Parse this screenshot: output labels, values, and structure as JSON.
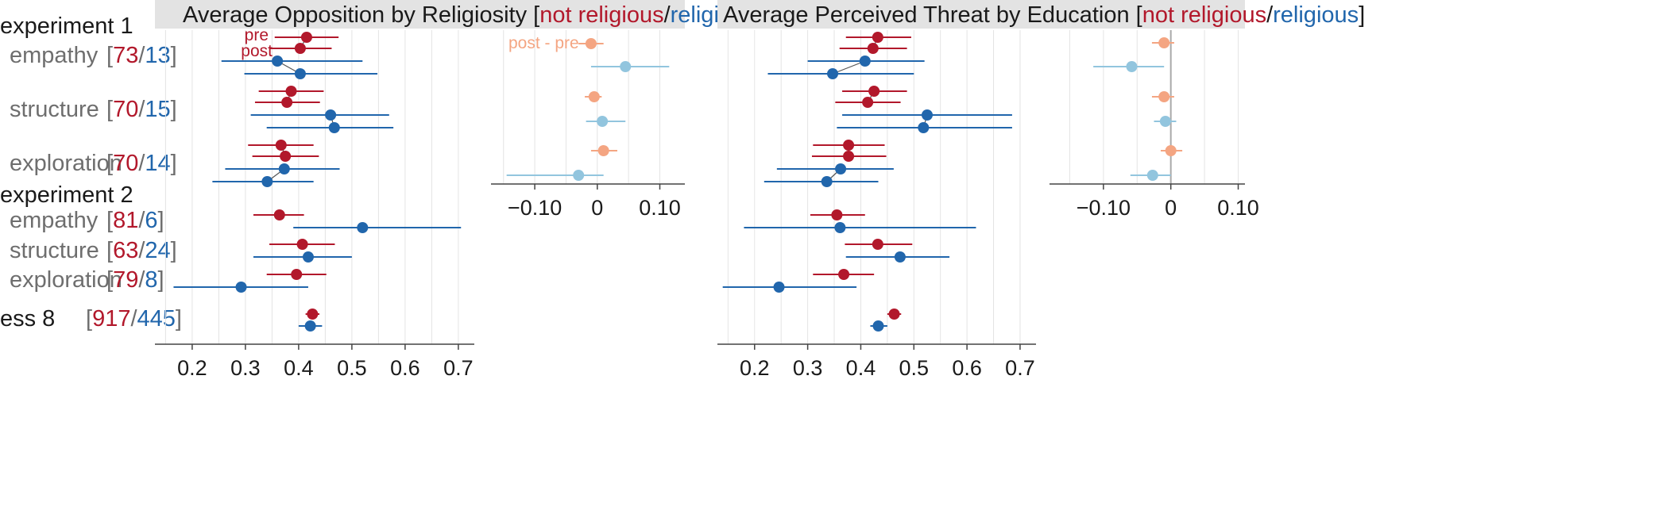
{
  "colors": {
    "not_religious": "#b2182b",
    "religious": "#2166ac",
    "diff_not_religious": "#f4a582",
    "diff_religious": "#92c5de",
    "grid": "#e4e4e4",
    "title_bg": "#e3e3e3",
    "axis": "#444444",
    "zero_line": "#aaaaaa",
    "row_label": "#6e6e6e"
  },
  "labels": {
    "pre": "pre",
    "post": "post",
    "post_minus_pre": "post - pre"
  },
  "rows": [
    {
      "kind": "group",
      "label": "experiment 1"
    },
    {
      "kind": "row",
      "label": "empathy",
      "counts": {
        "not_religious": "73",
        "religious": "13"
      },
      "paired": true
    },
    {
      "kind": "row",
      "label": "structure",
      "counts": {
        "not_religious": "70",
        "religious": "15"
      },
      "paired": true
    },
    {
      "kind": "row",
      "label": "exploration",
      "counts": {
        "not_religious": "70",
        "religious": "14"
      },
      "paired": true
    },
    {
      "kind": "group",
      "label": "experiment 2"
    },
    {
      "kind": "row",
      "label": "empathy",
      "counts": {
        "not_religious": "81",
        "religious": "6"
      },
      "paired": false
    },
    {
      "kind": "row",
      "label": "structure",
      "counts": {
        "not_religious": "63",
        "religious": "24"
      },
      "paired": false
    },
    {
      "kind": "row",
      "label": "exploration",
      "counts": {
        "not_religious": "79",
        "religious": "8"
      },
      "paired": false
    },
    {
      "kind": "group",
      "label": "ess 8",
      "counts": {
        "not_religious": "917",
        "religious": "445"
      },
      "paired": false
    }
  ],
  "chart_data": [
    {
      "type": "scatter",
      "title": {
        "prefix": "Average Opposition by Religiosity [",
        "not_religious": "not religious",
        "sep": "/",
        "religious": "religious",
        "suffix": "]"
      },
      "xlim": [
        0.13,
        0.73
      ],
      "xticks": [
        0.2,
        0.3,
        0.4,
        0.5,
        0.6,
        0.7
      ],
      "xticklabels": [
        "0.2",
        "0.3",
        "0.4",
        "0.5",
        "0.6",
        "0.7"
      ],
      "grid": true,
      "series": [
        {
          "name": "not religious",
          "points": [
            {
              "row": "experiment 1 empathy",
              "wave": "pre",
              "mean": 0.415,
              "ci": [
                0.355,
                0.475
              ]
            },
            {
              "row": "experiment 1 empathy",
              "wave": "post",
              "mean": 0.403,
              "ci": [
                0.345,
                0.462
              ]
            },
            {
              "row": "experiment 1 structure",
              "wave": "pre",
              "mean": 0.386,
              "ci": [
                0.325,
                0.447
              ]
            },
            {
              "row": "experiment 1 structure",
              "wave": "post",
              "mean": 0.378,
              "ci": [
                0.318,
                0.44
              ]
            },
            {
              "row": "experiment 1 exploration",
              "wave": "pre",
              "mean": 0.367,
              "ci": [
                0.305,
                0.428
              ]
            },
            {
              "row": "experiment 1 exploration",
              "wave": "post",
              "mean": 0.375,
              "ci": [
                0.313,
                0.438
              ]
            },
            {
              "row": "experiment 2 empathy",
              "mean": 0.364,
              "ci": [
                0.315,
                0.41
              ]
            },
            {
              "row": "experiment 2 structure",
              "mean": 0.407,
              "ci": [
                0.345,
                0.468
              ]
            },
            {
              "row": "experiment 2 exploration",
              "mean": 0.396,
              "ci": [
                0.34,
                0.452
              ]
            },
            {
              "row": "ess 8",
              "mean": 0.426,
              "ci": [
                0.413,
                0.439
              ]
            }
          ]
        },
        {
          "name": "religious",
          "points": [
            {
              "row": "experiment 1 empathy",
              "wave": "pre",
              "mean": 0.36,
              "ci": [
                0.255,
                0.52
              ]
            },
            {
              "row": "experiment 1 empathy",
              "wave": "post",
              "mean": 0.403,
              "ci": [
                0.298,
                0.548
              ]
            },
            {
              "row": "experiment 1 structure",
              "wave": "pre",
              "mean": 0.46,
              "ci": [
                0.31,
                0.57
              ]
            },
            {
              "row": "experiment 1 structure",
              "wave": "post",
              "mean": 0.467,
              "ci": [
                0.34,
                0.578
              ]
            },
            {
              "row": "experiment 1 exploration",
              "wave": "pre",
              "mean": 0.373,
              "ci": [
                0.262,
                0.477
              ]
            },
            {
              "row": "experiment 1 exploration",
              "wave": "post",
              "mean": 0.341,
              "ci": [
                0.238,
                0.428
              ]
            },
            {
              "row": "experiment 2 empathy",
              "mean": 0.52,
              "ci": [
                0.39,
                0.705
              ]
            },
            {
              "row": "experiment 2 structure",
              "mean": 0.418,
              "ci": [
                0.315,
                0.5
              ]
            },
            {
              "row": "experiment 2 exploration",
              "mean": 0.292,
              "ci": [
                0.165,
                0.418
              ]
            },
            {
              "row": "ess 8",
              "mean": 0.422,
              "ci": [
                0.4,
                0.444
              ]
            }
          ]
        }
      ],
      "difference": {
        "xlim": [
          -0.17,
          0.14
        ],
        "xticks": [
          -0.1,
          0,
          0.1
        ],
        "xticklabels": [
          "−0.10",
          "0",
          "0.10"
        ],
        "zero_line": false,
        "series": [
          {
            "name": "not religious",
            "points": [
              {
                "row": "experiment 1 empathy",
                "mean": -0.01,
                "ci": [
                  -0.03,
                  0.01
                ]
              },
              {
                "row": "experiment 1 structure",
                "mean": -0.005,
                "ci": [
                  -0.02,
                  0.007
                ]
              },
              {
                "row": "experiment 1 exploration",
                "mean": 0.01,
                "ci": [
                  -0.01,
                  0.032
                ]
              }
            ]
          },
          {
            "name": "religious",
            "points": [
              {
                "row": "experiment 1 empathy",
                "mean": 0.045,
                "ci": [
                  -0.01,
                  0.115
                ]
              },
              {
                "row": "experiment 1 structure",
                "mean": 0.008,
                "ci": [
                  -0.018,
                  0.045
                ]
              },
              {
                "row": "experiment 1 exploration",
                "mean": -0.03,
                "ci": [
                  -0.145,
                  0.01
                ]
              }
            ]
          }
        ]
      }
    },
    {
      "type": "scatter",
      "title": {
        "prefix": "Average Perceived Threat by Education [",
        "not_religious": "not religious",
        "sep": "/",
        "religious": "religious",
        "suffix": "]"
      },
      "xlim": [
        0.13,
        0.73
      ],
      "xticks": [
        0.2,
        0.3,
        0.4,
        0.5,
        0.6,
        0.7
      ],
      "xticklabels": [
        "0.2",
        "0.3",
        "0.4",
        "0.5",
        "0.6",
        "0.7"
      ],
      "grid": true,
      "series": [
        {
          "name": "not religious",
          "points": [
            {
              "row": "experiment 1 empathy",
              "wave": "pre",
              "mean": 0.432,
              "ci": [
                0.372,
                0.495
              ]
            },
            {
              "row": "experiment 1 empathy",
              "wave": "post",
              "mean": 0.423,
              "ci": [
                0.36,
                0.487
              ]
            },
            {
              "row": "experiment 1 structure",
              "wave": "pre",
              "mean": 0.425,
              "ci": [
                0.365,
                0.487
              ]
            },
            {
              "row": "experiment 1 structure",
              "wave": "post",
              "mean": 0.413,
              "ci": [
                0.352,
                0.475
              ]
            },
            {
              "row": "experiment 1 exploration",
              "wave": "pre",
              "mean": 0.377,
              "ci": [
                0.31,
                0.445
              ]
            },
            {
              "row": "experiment 1 exploration",
              "wave": "post",
              "mean": 0.377,
              "ci": [
                0.308,
                0.448
              ]
            },
            {
              "row": "experiment 2 empathy",
              "mean": 0.355,
              "ci": [
                0.305,
                0.408
              ]
            },
            {
              "row": "experiment 2 structure",
              "mean": 0.432,
              "ci": [
                0.37,
                0.497
              ]
            },
            {
              "row": "experiment 2 exploration",
              "mean": 0.368,
              "ci": [
                0.31,
                0.425
              ]
            },
            {
              "row": "ess 8",
              "mean": 0.463,
              "ci": [
                0.45,
                0.476
              ]
            }
          ]
        },
        {
          "name": "religious",
          "points": [
            {
              "row": "experiment 1 empathy",
              "wave": "pre",
              "mean": 0.408,
              "ci": [
                0.3,
                0.52
              ]
            },
            {
              "row": "experiment 1 empathy",
              "wave": "post",
              "mean": 0.347,
              "ci": [
                0.225,
                0.5
              ]
            },
            {
              "row": "experiment 1 structure",
              "wave": "pre",
              "mean": 0.525,
              "ci": [
                0.365,
                0.685
              ]
            },
            {
              "row": "experiment 1 structure",
              "wave": "post",
              "mean": 0.518,
              "ci": [
                0.355,
                0.685
              ]
            },
            {
              "row": "experiment 1 exploration",
              "wave": "pre",
              "mean": 0.362,
              "ci": [
                0.242,
                0.462
              ]
            },
            {
              "row": "experiment 1 exploration",
              "wave": "post",
              "mean": 0.336,
              "ci": [
                0.218,
                0.433
              ]
            },
            {
              "row": "experiment 2 empathy",
              "mean": 0.361,
              "ci": [
                0.18,
                0.617
              ]
            },
            {
              "row": "experiment 2 structure",
              "mean": 0.474,
              "ci": [
                0.372,
                0.567
              ]
            },
            {
              "row": "experiment 2 exploration",
              "mean": 0.246,
              "ci": [
                0.14,
                0.392
              ]
            },
            {
              "row": "ess 8",
              "mean": 0.433,
              "ci": [
                0.418,
                0.45
              ]
            }
          ]
        }
      ],
      "difference": {
        "xlim": [
          -0.18,
          0.11
        ],
        "xticks": [
          -0.1,
          0,
          0.1
        ],
        "xticklabels": [
          "−0.10",
          "0",
          "0.10"
        ],
        "zero_line": true,
        "series": [
          {
            "name": "not religious",
            "points": [
              {
                "row": "experiment 1 empathy",
                "mean": -0.01,
                "ci": [
                  -0.028,
                  0.005
                ]
              },
              {
                "row": "experiment 1 structure",
                "mean": -0.01,
                "ci": [
                  -0.028,
                  0.005
                ]
              },
              {
                "row": "experiment 1 exploration",
                "mean": 0.0,
                "ci": [
                  -0.015,
                  0.017
                ]
              }
            ]
          },
          {
            "name": "religious",
            "points": [
              {
                "row": "experiment 1 empathy",
                "mean": -0.058,
                "ci": [
                  -0.115,
                  -0.01
                ]
              },
              {
                "row": "experiment 1 structure",
                "mean": -0.008,
                "ci": [
                  -0.025,
                  0.008
                ]
              },
              {
                "row": "experiment 1 exploration",
                "mean": -0.027,
                "ci": [
                  -0.06,
                  0.0
                ]
              }
            ]
          }
        ]
      }
    }
  ]
}
